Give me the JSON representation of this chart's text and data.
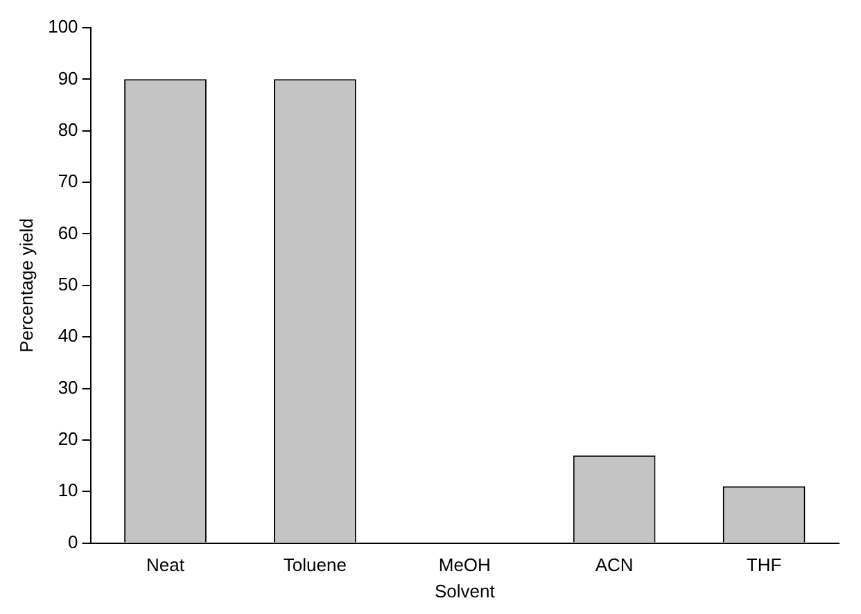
{
  "chart_data": {
    "type": "bar",
    "xlabel": "Solvent",
    "ylabel": "Percentage yield",
    "categories": [
      "Neat",
      "Toluene",
      "MeOH",
      "ACN",
      "THF"
    ],
    "values": [
      90,
      90,
      0,
      17,
      11
    ],
    "color": "#c4c4c4",
    "ylim": [
      0,
      100
    ],
    "yticks": [
      0,
      10,
      20,
      30,
      40,
      50,
      60,
      70,
      80,
      90,
      100
    ],
    "grid": false,
    "legend": false
  }
}
